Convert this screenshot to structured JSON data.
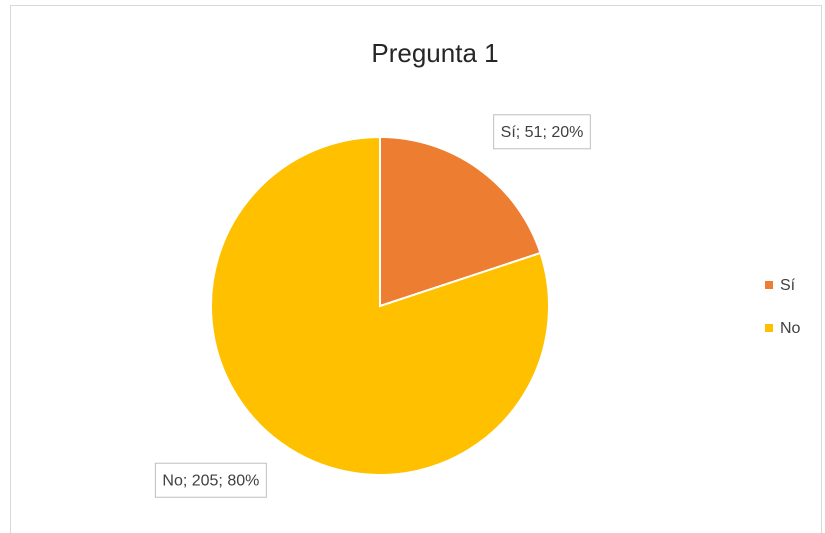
{
  "chart_data": {
    "type": "pie",
    "title": "Pregunta 1",
    "categories": [
      "Sí",
      "No"
    ],
    "values": [
      51,
      205
    ],
    "value_labels": [
      "Sí; 51; 20%",
      "No; 205; 80%"
    ],
    "colors": [
      "#ED7D31",
      "#FFC000"
    ],
    "legend": "right"
  }
}
